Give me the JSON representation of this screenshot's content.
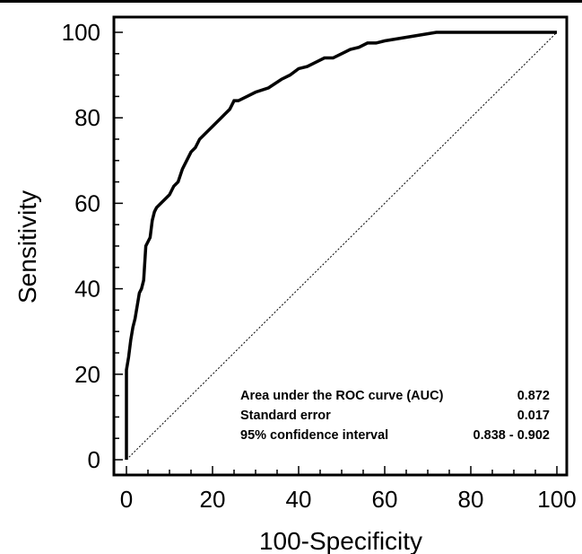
{
  "chart_data": {
    "type": "line",
    "title": "",
    "xlabel": "100-Specificity",
    "ylabel": "Sensitivity",
    "xlim": [
      0,
      100
    ],
    "ylim": [
      0,
      100
    ],
    "x_ticks": [
      "0",
      "20",
      "40",
      "60",
      "80",
      "100"
    ],
    "y_ticks": [
      "0",
      "20",
      "40",
      "60",
      "80",
      "100"
    ],
    "grid": false,
    "series": [
      {
        "x": [
          0,
          0,
          0.5,
          1,
          1.5,
          2,
          2.5,
          3,
          3.5,
          4,
          4.5,
          5,
          5.5,
          6,
          6.5,
          7,
          8,
          9,
          10,
          11,
          12,
          13,
          14,
          15,
          16,
          17,
          18,
          19,
          20,
          22,
          24,
          25,
          26,
          28,
          30,
          33,
          36,
          38,
          40,
          42,
          44,
          46,
          48,
          50,
          52,
          54,
          56,
          58,
          60,
          63,
          66,
          69,
          72,
          75,
          80,
          90,
          100
        ],
        "y": [
          0,
          21,
          24,
          28,
          31,
          33,
          36,
          39,
          40,
          42,
          50,
          51,
          52,
          56,
          58,
          59,
          60,
          61,
          62,
          64,
          65,
          68,
          70,
          72,
          73,
          75,
          76,
          77,
          78,
          80,
          82,
          84,
          84,
          85,
          86,
          87,
          89,
          90,
          91.5,
          92,
          93,
          94,
          94,
          95,
          96,
          96.5,
          97.5,
          97.5,
          98,
          98.5,
          99,
          99.5,
          100,
          100,
          100,
          100,
          100
        ],
        "color": "#000000"
      },
      {
        "x": [
          0,
          100
        ],
        "y": [
          0,
          100
        ],
        "color": "#000000"
      }
    ],
    "annotations": {
      "auc_label": "Area under the ROC curve (AUC)",
      "auc_value": "0.872",
      "se_label": "Standard error",
      "se_value": "0.017",
      "ci_label": "95% confidence interval",
      "ci_value": "0.838 - 0.902"
    }
  }
}
